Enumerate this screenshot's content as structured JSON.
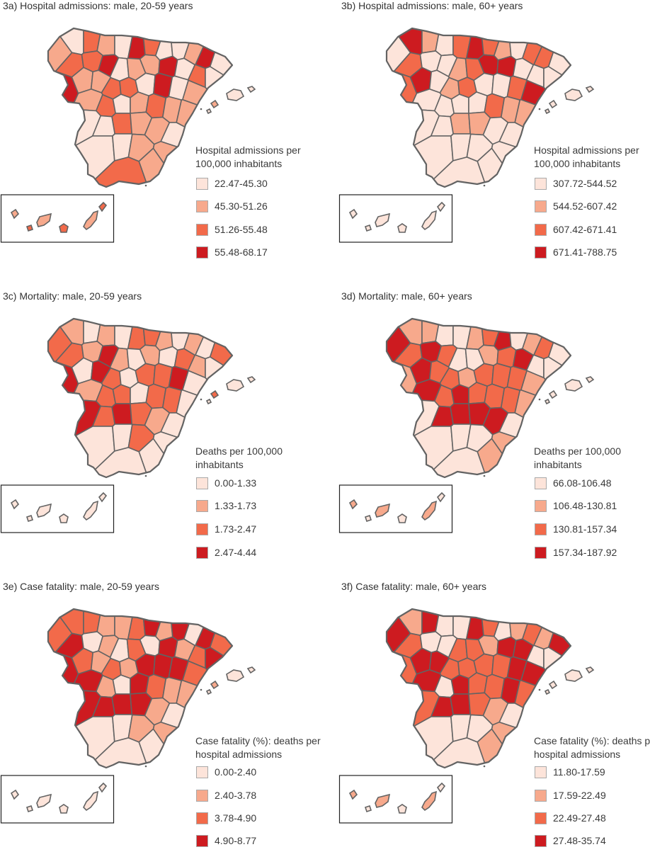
{
  "colors": {
    "c1": "#fde4da",
    "c2": "#f7a98c",
    "c3": "#f26a4a",
    "c4": "#cd1b20",
    "border": "#636363"
  },
  "panels": [
    {
      "title": "3a) Hospital admissions: male, 20-59 years",
      "legend_title_lines": [
        "Hospital admissions per",
        "100,000 inhabitants"
      ],
      "legend_labels": [
        "22.47-45.30",
        "45.30-51.26",
        "51.26-55.48",
        "55.48-68.17"
      ],
      "region_classes": [
        2,
        1,
        3,
        4,
        3,
        2,
        1,
        4,
        3,
        1,
        0,
        2,
        4,
        0,
        3,
        4,
        1,
        2,
        2,
        4,
        0,
        3,
        0,
        2,
        2,
        3,
        3,
        1,
        4,
        1,
        2,
        2,
        3,
        1,
        2,
        3,
        2,
        2,
        1,
        1,
        3,
        2,
        2,
        1,
        2,
        1,
        1,
        2,
        2,
        3
      ]
    },
    {
      "title": "3b) Hospital admissions: male, 60+ years",
      "legend_title_lines": [
        "Hospital admissions per",
        "100,000 inhabitants"
      ],
      "legend_labels": [
        "307.72-544.52",
        "544.52-607.42",
        "607.42-671.41",
        "671.41-788.75"
      ],
      "region_classes": [
        1,
        4,
        3,
        3,
        2,
        0,
        3,
        4,
        3,
        2,
        1,
        3,
        3,
        0,
        1,
        0,
        2,
        3,
        4,
        4,
        0,
        1,
        0,
        4,
        1,
        2,
        3,
        1,
        1,
        3,
        4,
        1,
        1,
        1,
        1,
        3,
        2,
        2,
        1,
        0,
        2,
        2,
        1,
        1,
        1,
        1,
        0,
        1,
        1,
        1
      ]
    },
    {
      "title": "3c) Mortality: male, 20-59 years",
      "legend_title_lines": [
        "Deaths per 100,000",
        "inhabitants"
      ],
      "legend_labels": [
        "0.00-1.33",
        "1.33-1.73",
        "1.73-2.47",
        "2.47-4.44"
      ],
      "region_classes": [
        3,
        2,
        3,
        4,
        1,
        2,
        1,
        3,
        3,
        2,
        1,
        2,
        1,
        3,
        2,
        4,
        2,
        0,
        2,
        1,
        3,
        2,
        0,
        1,
        4,
        3,
        0,
        3,
        3,
        4,
        1,
        2,
        3,
        3,
        1,
        3,
        3,
        1,
        4,
        3,
        4,
        3,
        2,
        1,
        1,
        1,
        1,
        3,
        1,
        1
      ]
    },
    {
      "title": "3d) Mortality: male, 60+ years",
      "legend_title_lines": [
        "Deaths per 100,000",
        "inhabitants"
      ],
      "legend_labels": [
        "66.08-106.48",
        "106.48-130.81",
        "130.81-157.34",
        "157.34-187.92"
      ],
      "region_classes": [
        4,
        2,
        3,
        2,
        2,
        1,
        1,
        2,
        3,
        4,
        1,
        2,
        3,
        1,
        4,
        3,
        1,
        0,
        2,
        3,
        4,
        0,
        1,
        4,
        3,
        3,
        2,
        3,
        3,
        3,
        2,
        4,
        3,
        4,
        3,
        3,
        3,
        2,
        1,
        4,
        4,
        4,
        4,
        1,
        2,
        1,
        1,
        1,
        2,
        1
      ]
    },
    {
      "title": "3e) Case fatality: male, 20-59 years",
      "legend_title_lines": [
        "Case fatality (%): deaths per",
        "hospital admissions"
      ],
      "legend_labels": [
        "0.00-2.40",
        "2.40-3.78",
        "3.78-4.90",
        "4.90-8.77"
      ],
      "region_classes": [
        3,
        3,
        4,
        4,
        3,
        2,
        2,
        3,
        4,
        2,
        4,
        1,
        4,
        3,
        1,
        2,
        1,
        3,
        0,
        4,
        2,
        3,
        4,
        3,
        2,
        3,
        2,
        4,
        4,
        4,
        3,
        4,
        2,
        1,
        4,
        3,
        2,
        2,
        4,
        4,
        4,
        4,
        2,
        1,
        2,
        1,
        1,
        2,
        1,
        1
      ]
    },
    {
      "title": "3f) Case fatality: male, 60+ years",
      "legend_title_lines": [
        "Case fatality (%): deaths per",
        "hospital admissions"
      ],
      "legend_labels": [
        "11.80-17.59",
        "17.59-22.49",
        "22.49-27.48",
        "27.48-35.74"
      ],
      "region_classes": [
        4,
        2,
        3,
        3,
        4,
        1,
        1,
        4,
        3,
        1,
        2,
        3,
        2,
        4,
        1,
        1,
        3,
        3,
        2,
        4,
        4,
        0,
        1,
        4,
        4,
        3,
        3,
        3,
        3,
        4,
        4,
        4,
        1,
        4,
        3,
        3,
        4,
        3,
        3,
        4,
        4,
        3,
        2,
        1,
        2,
        1,
        1,
        1,
        2,
        1
      ]
    }
  ]
}
